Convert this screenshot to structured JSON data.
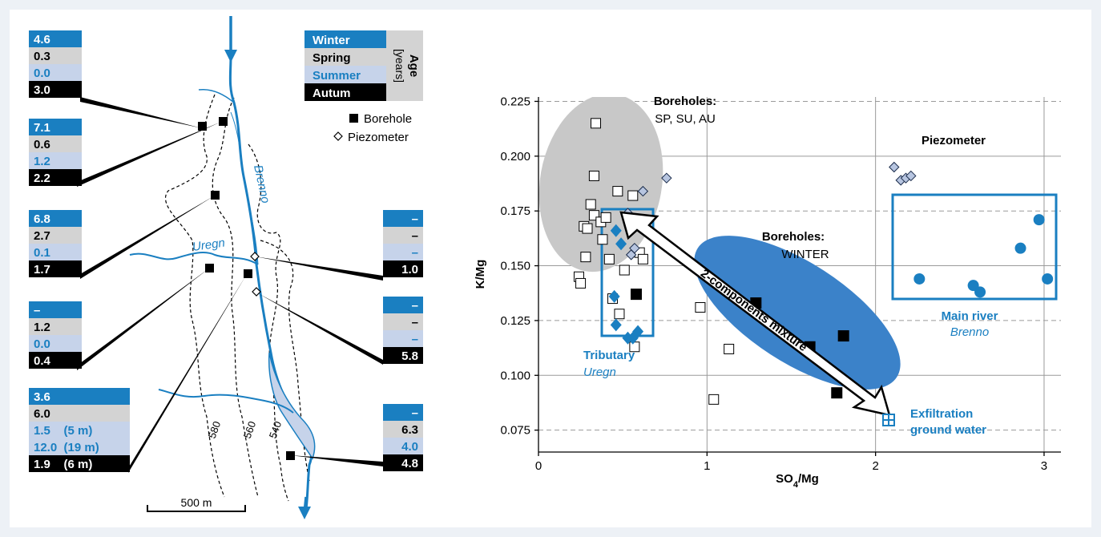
{
  "colors": {
    "winter": "#1a7fc1",
    "spring": "#d3d3d3",
    "summer": "#c6d3ea",
    "autumn": "#000000",
    "mix_ellipse": "#3b82c9",
    "grey_ellipse": "#c8c8c8",
    "piezo_fill": "#b7c5e0"
  },
  "map": {
    "age_legend": {
      "title": "Age",
      "unit": "[years]",
      "seasons": [
        "Winter",
        "Spring",
        "Summer",
        "Autum"
      ]
    },
    "symbols": {
      "borehole": "Borehole",
      "piezometer": "Piezometer"
    },
    "rivers": {
      "main": "Brenno",
      "tributary": "Uregn"
    },
    "contours": [
      "580",
      "560",
      "540"
    ],
    "scale": "500 m",
    "age_boxes": [
      {
        "winter": "4.6",
        "spring": "0.3",
        "summer": "0.0",
        "autumn": "3.0"
      },
      {
        "winter": "7.1",
        "spring": "0.6",
        "summer": "1.2",
        "autumn": "2.2"
      },
      {
        "winter": "6.8",
        "spring": "2.7",
        "summer": "0.1",
        "autumn": "1.7"
      },
      {
        "winter": "–",
        "spring": "1.2",
        "summer": "0.0",
        "autumn": "0.4"
      },
      {
        "winter": "3.6",
        "spring": "6.0",
        "summer": "1.5    (5 m)",
        "summer2": "12.0  (19 m)",
        "autumn": "1.9    (6 m)"
      },
      {
        "winter": "–",
        "spring": "–",
        "summer": "–",
        "autumn": "1.0"
      },
      {
        "winter": "–",
        "spring": "–",
        "summer": "–",
        "autumn": "5.8"
      },
      {
        "winter": "–",
        "spring": "6.3",
        "summer": "4.0",
        "autumn": "4.8"
      }
    ]
  },
  "chart_data": {
    "type": "scatter",
    "xlabel": "SO4/Mg",
    "ylabel": "K/Mg",
    "xlim": [
      0,
      3.1
    ],
    "ylim": [
      0.065,
      0.227
    ],
    "xticks": [
      "0",
      "1",
      "2",
      "3"
    ],
    "yticks": [
      "0.075",
      "0.100",
      "0.125",
      "0.150",
      "0.175",
      "0.200",
      "0.225"
    ],
    "grid": true,
    "series": [
      {
        "name": "Boreholes SP, SU, AU",
        "marker": "open-square",
        "points": [
          [
            0.24,
            0.145
          ],
          [
            0.25,
            0.142
          ],
          [
            0.27,
            0.168
          ],
          [
            0.28,
            0.154
          ],
          [
            0.29,
            0.167
          ],
          [
            0.31,
            0.178
          ],
          [
            0.33,
            0.173
          ],
          [
            0.33,
            0.191
          ],
          [
            0.34,
            0.215
          ],
          [
            0.37,
            0.17
          ],
          [
            0.38,
            0.162
          ],
          [
            0.4,
            0.172
          ],
          [
            0.42,
            0.153
          ],
          [
            0.44,
            0.135
          ],
          [
            0.47,
            0.184
          ],
          [
            0.48,
            0.128
          ],
          [
            0.51,
            0.148
          ],
          [
            0.56,
            0.182
          ],
          [
            0.57,
            0.113
          ],
          [
            0.6,
            0.156
          ],
          [
            0.62,
            0.153
          ],
          [
            0.96,
            0.131
          ],
          [
            1.13,
            0.112
          ],
          [
            1.04,
            0.089
          ]
        ]
      },
      {
        "name": "Boreholes WINTER",
        "marker": "filled-square",
        "points": [
          [
            0.58,
            0.137
          ],
          [
            1.29,
            0.133
          ],
          [
            1.61,
            0.113
          ],
          [
            1.81,
            0.118
          ],
          [
            1.77,
            0.092
          ]
        ]
      },
      {
        "name": "Piezometer",
        "marker": "open-diamond",
        "points": [
          [
            0.53,
            0.174
          ],
          [
            0.55,
            0.155
          ],
          [
            0.57,
            0.158
          ],
          [
            0.62,
            0.184
          ],
          [
            0.76,
            0.19
          ],
          [
            2.11,
            0.195
          ],
          [
            2.15,
            0.189
          ],
          [
            2.18,
            0.19
          ],
          [
            2.21,
            0.191
          ]
        ]
      },
      {
        "name": "Tributary Uregn",
        "marker": "filled-diamond",
        "points": [
          [
            0.46,
            0.166
          ],
          [
            0.49,
            0.16
          ],
          [
            0.45,
            0.136
          ],
          [
            0.46,
            0.123
          ],
          [
            0.53,
            0.117
          ],
          [
            0.56,
            0.117
          ],
          [
            0.59,
            0.12
          ]
        ]
      },
      {
        "name": "Main river Brenno",
        "marker": "filled-circle",
        "points": [
          [
            2.26,
            0.144
          ],
          [
            2.58,
            0.141
          ],
          [
            2.62,
            0.138
          ],
          [
            2.86,
            0.158
          ],
          [
            2.97,
            0.171
          ],
          [
            3.02,
            0.144
          ]
        ]
      }
    ],
    "annotations": {
      "boreholes_sp": [
        "Boreholes:",
        "SP, SU, AU"
      ],
      "boreholes_winter": [
        "Boreholes:",
        "WINTER"
      ],
      "piezometer": "Piezometer",
      "main_river": [
        "Main river",
        "Brenno"
      ],
      "tributary": [
        "Tributary",
        "Uregn"
      ],
      "mixture": "2-components mixture",
      "exfiltration": [
        "Exfiltration",
        "ground water"
      ]
    }
  }
}
